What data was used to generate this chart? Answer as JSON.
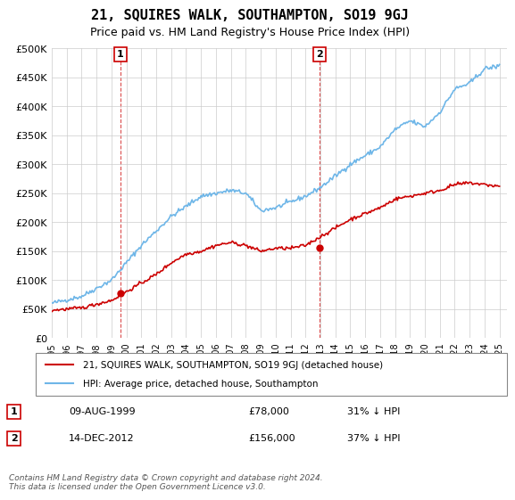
{
  "title": "21, SQUIRES WALK, SOUTHAMPTON, SO19 9GJ",
  "subtitle": "Price paid vs. HM Land Registry's House Price Index (HPI)",
  "hpi_color": "#6eb6e8",
  "price_color": "#cc0000",
  "ylim": [
    0,
    500000
  ],
  "yticks": [
    0,
    50000,
    100000,
    150000,
    200000,
    250000,
    300000,
    350000,
    400000,
    450000,
    500000
  ],
  "ytick_labels": [
    "£0",
    "£50K",
    "£100K",
    "£150K",
    "£200K",
    "£250K",
    "£300K",
    "£350K",
    "£400K",
    "£450K",
    "£500K"
  ],
  "annotation1": {
    "label": "1",
    "date": "09-AUG-1999",
    "price": "£78,000",
    "hpi_diff": "31% ↓ HPI",
    "x_year": 1999.6,
    "y": 78000
  },
  "annotation2": {
    "label": "2",
    "date": "14-DEC-2012",
    "price": "£156,000",
    "hpi_diff": "37% ↓ HPI",
    "x_year": 2012.95,
    "y": 156000
  },
  "legend_line1": "21, SQUIRES WALK, SOUTHAMPTON, SO19 9GJ (detached house)",
  "legend_line2": "HPI: Average price, detached house, Southampton",
  "footer": "Contains HM Land Registry data © Crown copyright and database right 2024.\nThis data is licensed under the Open Government Licence v3.0.",
  "table_row1": [
    "1",
    "09-AUG-1999",
    "£78,000",
    "31% ↓ HPI"
  ],
  "table_row2": [
    "2",
    "14-DEC-2012",
    "£156,000",
    "37% ↓ HPI"
  ],
  "xmin": 1995,
  "xmax": 2025.5,
  "xticks": [
    1995,
    1996,
    1997,
    1998,
    1999,
    2000,
    2001,
    2002,
    2003,
    2004,
    2005,
    2006,
    2007,
    2008,
    2009,
    2010,
    2011,
    2012,
    2013,
    2014,
    2015,
    2016,
    2017,
    2018,
    2019,
    2020,
    2021,
    2022,
    2023,
    2024,
    2025
  ]
}
